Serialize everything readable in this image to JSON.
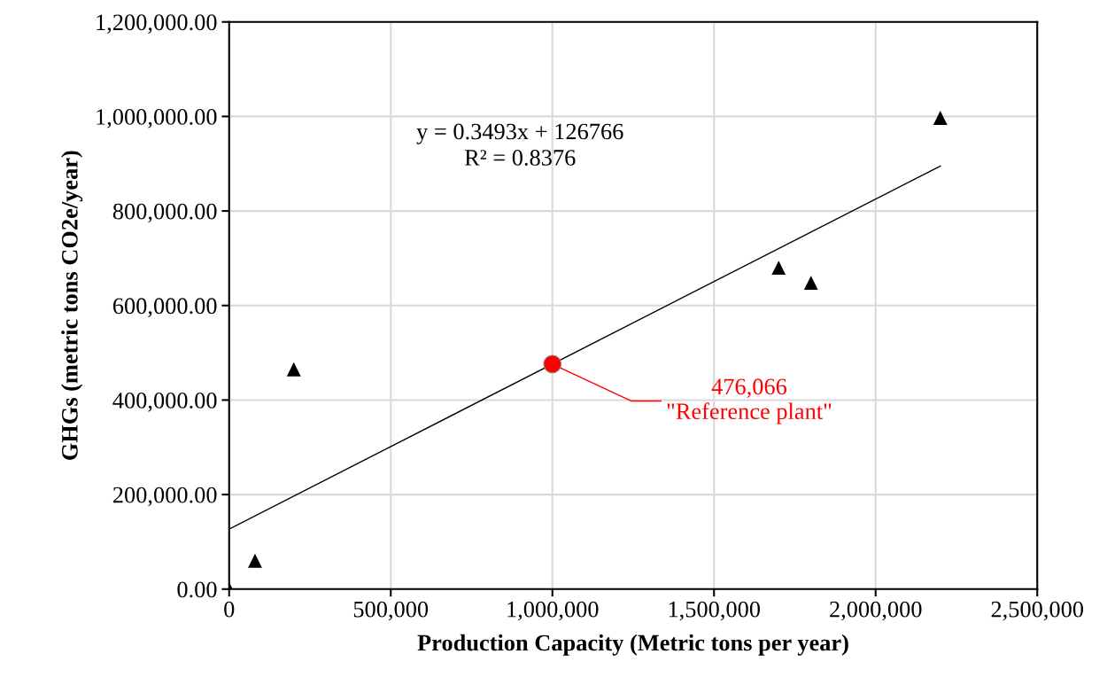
{
  "chart_data": {
    "type": "scatter",
    "xlabel": "Production Capacity (Metric tons per year)",
    "ylabel": "GHGs (metric tons CO2e/year)",
    "series": [
      {
        "color": "#000000",
        "marker": "triangle",
        "x": [
          0,
          80000,
          200000,
          1700000,
          1800000,
          2200000
        ],
        "values": [
          0,
          60000,
          465000,
          680000,
          648000,
          997000
        ]
      },
      {
        "type": "line",
        "color": "#000000",
        "marker": "none",
        "line_style": "solid",
        "x": [
          0,
          2200000
        ],
        "values": [
          127000,
          895000
        ]
      },
      {
        "color": "#ff0000",
        "marker": "circle",
        "x": [
          1000000
        ],
        "values": [
          476066
        ]
      }
    ],
    "annotations": [
      {
        "text": "y = 0.3493x + 126766\nR² = 0.8376"
      },
      {
        "text": "476,066\n\"Reference plant\"",
        "x": 1000000,
        "y": 476066
      }
    ],
    "xlim": [
      0,
      2500000
    ],
    "ylim": [
      0,
      1200000
    ],
    "xticks": [
      {
        "value": 0,
        "label": "0"
      },
      {
        "value": 500000,
        "label": "500,000"
      },
      {
        "value": 1000000,
        "label": "1,000,000"
      },
      {
        "value": 1500000,
        "label": "1,500,000"
      },
      {
        "value": 2000000,
        "label": "2,000,000"
      },
      {
        "value": 2500000,
        "label": "2,500,000"
      }
    ],
    "yticks": [
      {
        "value": 0,
        "label": "0.00"
      },
      {
        "value": 200000,
        "label": "200,000.00"
      },
      {
        "value": 400000,
        "label": "400,000.00"
      },
      {
        "value": 600000,
        "label": "600,000.00"
      },
      {
        "value": 800000,
        "label": "800,000.00"
      },
      {
        "value": 1000000,
        "label": "1,000,000.00"
      },
      {
        "value": 1200000,
        "label": "1,200,000.00"
      }
    ],
    "grid": true,
    "legend": false
  }
}
